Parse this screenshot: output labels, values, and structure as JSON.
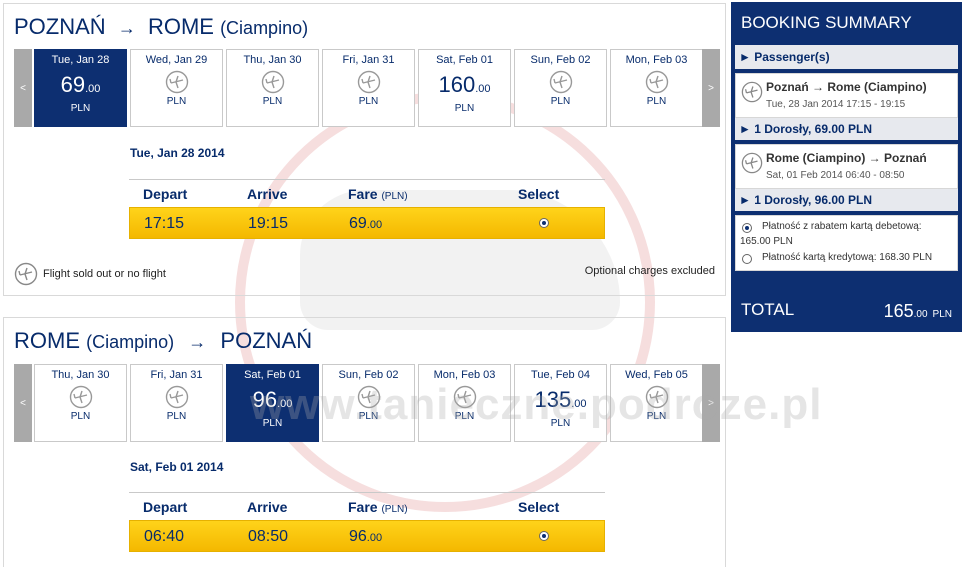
{
  "outbound": {
    "from": "POZNAŃ",
    "to": "ROME",
    "to_sub": "(Ciampino)",
    "arrow": "→",
    "days": [
      {
        "label": "Tue, Jan 28",
        "int": "69",
        "dec": ".00",
        "cur": "PLN",
        "selected": true
      },
      {
        "label": "Wed, Jan 29",
        "cur": "PLN"
      },
      {
        "label": "Thu, Jan 30",
        "cur": "PLN"
      },
      {
        "label": "Fri, Jan 31",
        "cur": "PLN"
      },
      {
        "label": "Sat, Feb 01",
        "int": "160",
        "dec": ".00",
        "cur": "PLN"
      },
      {
        "label": "Sun, Feb 02",
        "cur": "PLN"
      },
      {
        "label": "Mon, Feb 03",
        "cur": "PLN"
      }
    ],
    "date": "Tue, Jan 28 2014",
    "headers": {
      "depart": "Depart",
      "arrive": "Arrive",
      "fare": "Fare",
      "fare_unit": "(PLN)",
      "select": "Select"
    },
    "flight": {
      "depart": "17:15",
      "arrive": "19:15",
      "fare_int": "69",
      "fare_dec": ".00"
    },
    "legend": "Flight sold out or no flight",
    "optional": "Optional charges excluded"
  },
  "return": {
    "from": "ROME",
    "from_sub": "(Ciampino)",
    "to": "POZNAŃ",
    "arrow": "→",
    "days": [
      {
        "label": "Thu, Jan 30",
        "cur": "PLN"
      },
      {
        "label": "Fri, Jan 31",
        "cur": "PLN"
      },
      {
        "label": "Sat, Feb 01",
        "int": "96",
        "dec": ".00",
        "cur": "PLN",
        "selected": true
      },
      {
        "label": "Sun, Feb 02",
        "cur": "PLN"
      },
      {
        "label": "Mon, Feb 03",
        "cur": "PLN"
      },
      {
        "label": "Tue, Feb 04",
        "int": "135",
        "dec": ".00",
        "cur": "PLN"
      },
      {
        "label": "Wed, Feb 05",
        "cur": "PLN"
      }
    ],
    "date": "Sat, Feb 01 2014",
    "headers": {
      "depart": "Depart",
      "arrive": "Arrive",
      "fare": "Fare",
      "fare_unit": "(PLN)",
      "select": "Select"
    },
    "flight": {
      "depart": "06:40",
      "arrive": "08:50",
      "fare_int": "96",
      "fare_dec": ".00"
    }
  },
  "nav": {
    "prev": "<",
    "next": ">"
  },
  "summary": {
    "title": "BOOKING SUMMARY",
    "passengers": "► Passenger(s)",
    "leg1": {
      "title": "Poznań → Rome (Ciampino)",
      "sub": "Tue, 28 Jan 2014 17:15 - 19:15",
      "fare": "► 1 Dorosły, 69.00 PLN"
    },
    "leg2": {
      "title": "Rome (Ciampino) → Poznań",
      "sub": "Sat, 01 Feb 2014 06:40 - 08:50",
      "fare": "► 1 Dorosły, 96.00 PLN"
    },
    "pay1a": "Płatność z rabatem kartą debetową:",
    "pay1b": "165.00 PLN",
    "pay2": "Płatność kartą kredytową: 168.30 PLN",
    "total_label": "TOTAL",
    "total_int": "165",
    "total_dec": ".00",
    "total_cur": "PLN"
  },
  "watermark": "www.tanieczne.podroze.pl",
  "colors": {
    "navy": "#0d2f71",
    "yellow": "#ffd31a",
    "text": "#072b6b"
  }
}
